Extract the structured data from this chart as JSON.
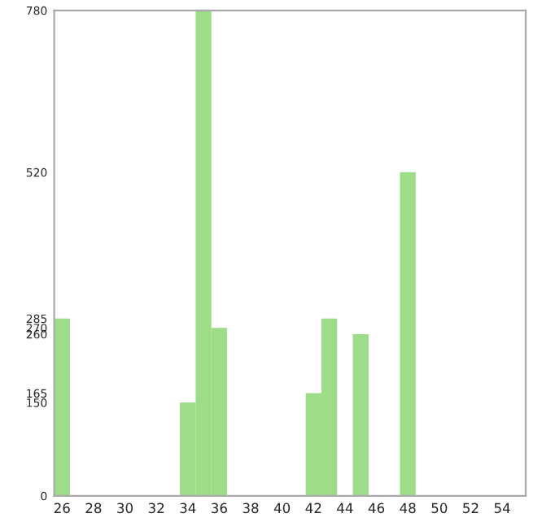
{
  "chart_data": {
    "type": "bar",
    "categories": [
      "26",
      null,
      "28",
      null,
      "30",
      null,
      "32",
      null,
      "34",
      null,
      "36",
      null,
      "38",
      null,
      "40",
      null,
      "42",
      null,
      "44",
      null,
      "46",
      null,
      "48",
      null,
      "50",
      null,
      "52",
      null,
      "54",
      null
    ],
    "values": [
      285,
      0,
      0,
      0,
      0,
      0,
      0,
      0,
      150,
      780,
      270,
      0,
      0,
      0,
      0,
      0,
      165,
      285,
      0,
      260,
      0,
      0,
      520,
      0,
      0,
      0,
      0,
      0,
      0,
      0
    ],
    "color": "#9ddd87",
    "ylim": [
      0,
      780
    ],
    "yticks": [
      0,
      150,
      165,
      260,
      270,
      285,
      520,
      780
    ],
    "grid": false
  }
}
